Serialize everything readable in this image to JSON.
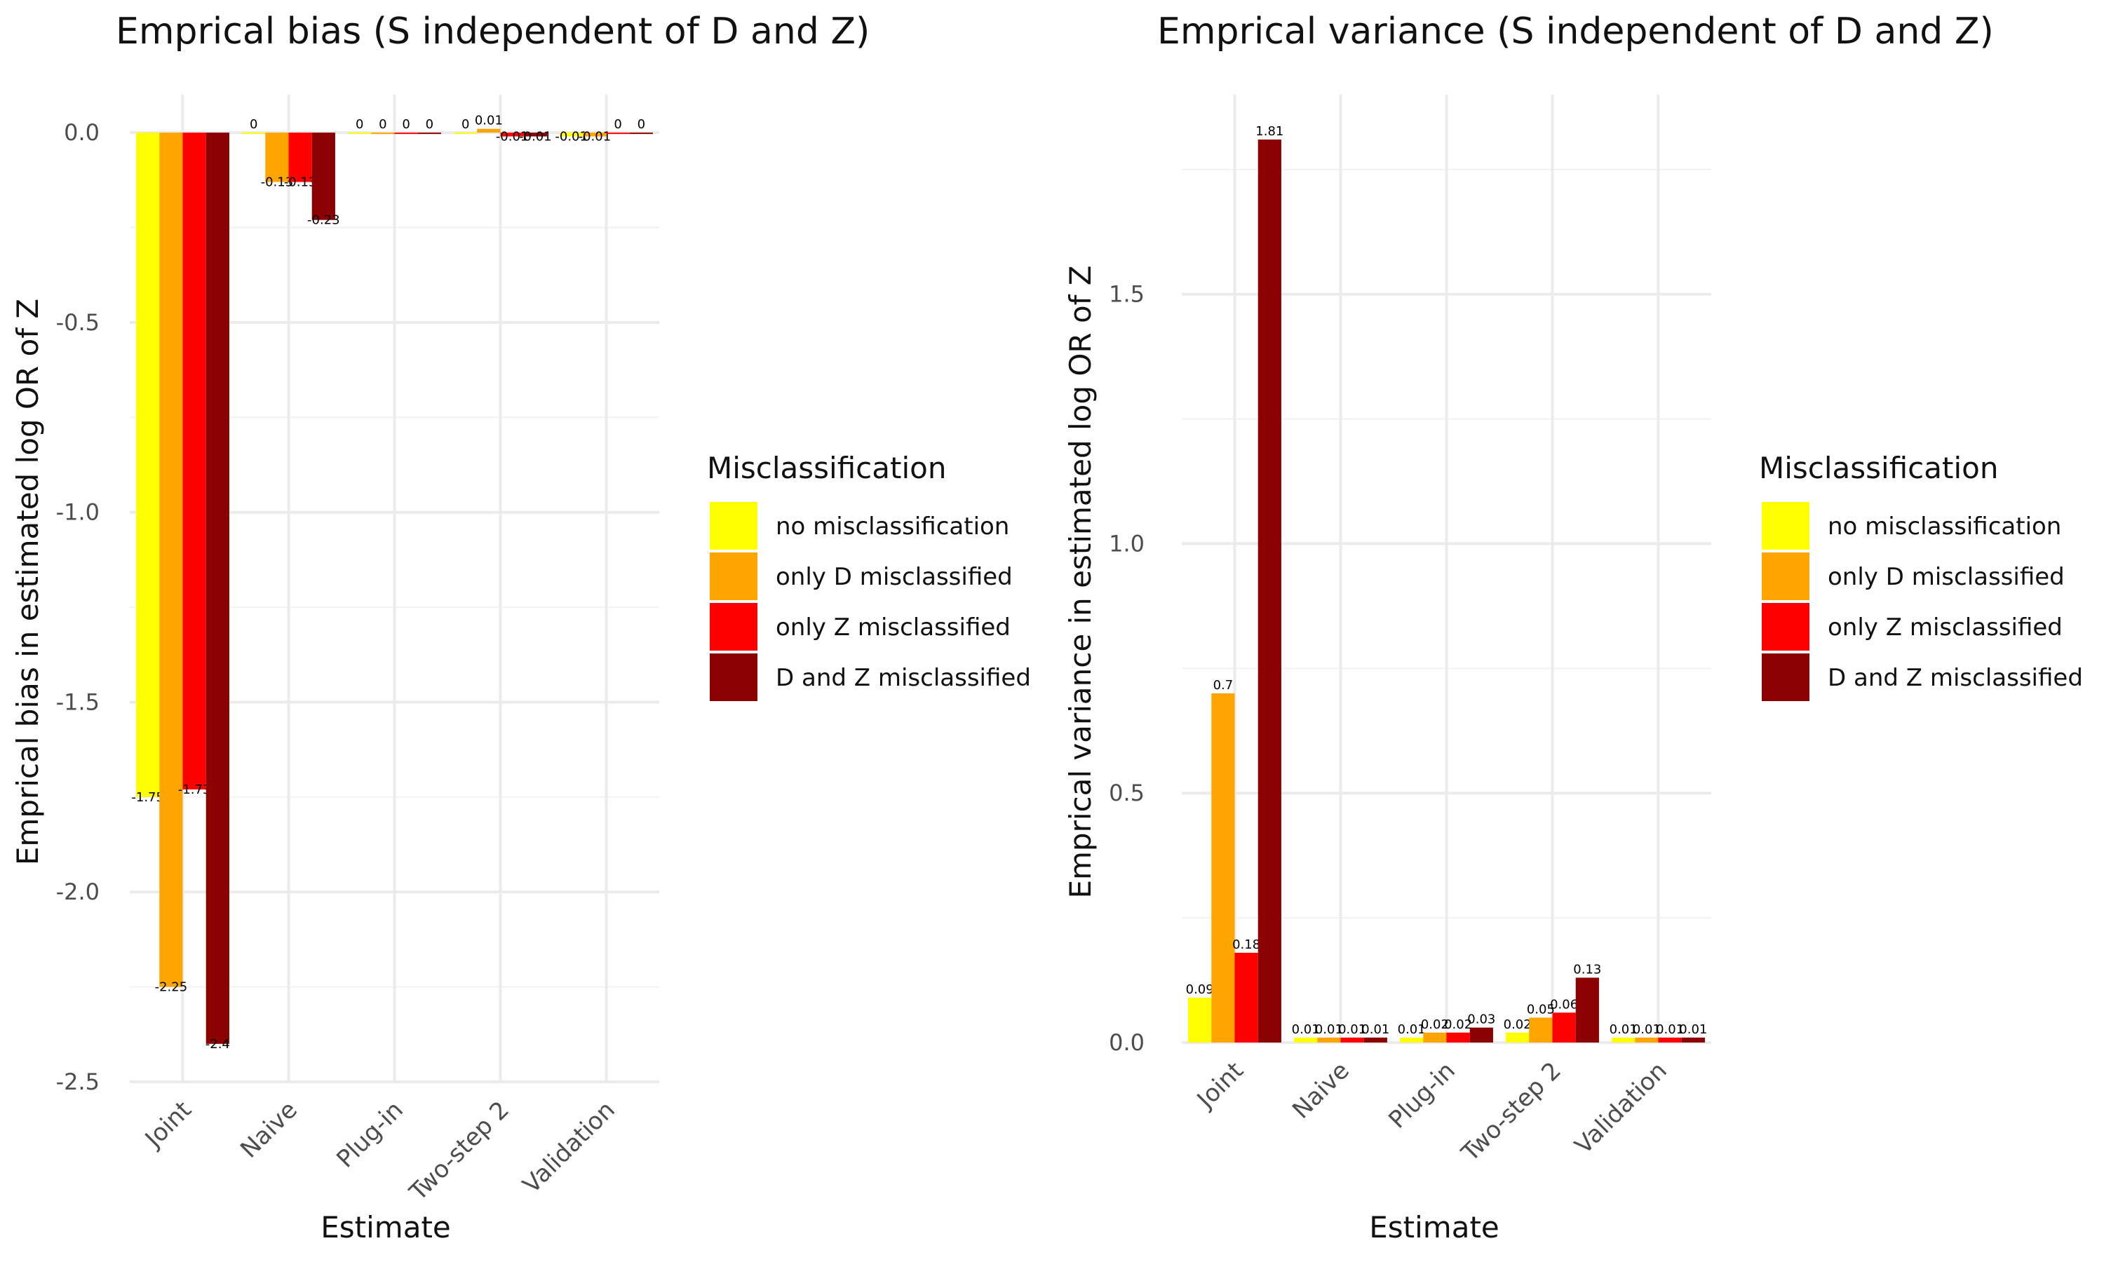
{
  "chart_data": [
    {
      "type": "bar",
      "title": "Emprical bias (S independent of D and Z)",
      "xlabel": "Estimate",
      "ylabel": "Emprical bias in estimated log OR of Z",
      "ylim": [
        -2.5,
        0.1
      ],
      "yticks": [
        -2.5,
        -2.0,
        -1.5,
        -1.0,
        -0.5,
        0.0
      ],
      "ytick_labels": [
        "-2.5",
        "-2.0",
        "-1.5",
        "-1.0",
        "-0.5",
        "0.0"
      ],
      "categories": [
        "Joint",
        "Naive",
        "Plug-in",
        "Two-step 2",
        "Validation"
      ],
      "series": [
        {
          "name": "no misclassification",
          "values": [
            -1.75,
            0,
            0,
            0,
            -0.01
          ],
          "labels": [
            "-1.75",
            "0",
            "0",
            "0",
            "-0.01"
          ]
        },
        {
          "name": "only D misclassified",
          "values": [
            -2.25,
            -0.13,
            0,
            0.01,
            -0.01
          ],
          "labels": [
            "-2.25",
            "-0.13",
            "0",
            "0.01",
            "-0.01"
          ]
        },
        {
          "name": "only Z misclassified",
          "values": [
            -1.73,
            -0.13,
            0,
            -0.01,
            0
          ],
          "labels": [
            "-1.73",
            "-0.13",
            "0",
            "-0.01",
            "0"
          ]
        },
        {
          "name": "D and Z misclassified",
          "values": [
            -2.4,
            -0.23,
            0,
            -0.01,
            0
          ],
          "labels": [
            "-2.4",
            "-0.23",
            "0",
            "-0.01",
            "0"
          ]
        }
      ],
      "grid": true,
      "legend": {
        "position": "right",
        "title": "Misclassification"
      }
    },
    {
      "type": "bar",
      "title": "Emprical variance (S independent of D and Z)",
      "xlabel": "Estimate",
      "ylabel": "Emprical variance in estimated log OR of Z",
      "ylim": [
        0.0,
        1.9
      ],
      "yticks": [
        0.0,
        0.5,
        1.0,
        1.5
      ],
      "ytick_labels": [
        "0.0",
        "0.5",
        "1.0",
        "1.5"
      ],
      "categories": [
        "Joint",
        "Naive",
        "Plug-in",
        "Two-step 2",
        "Validation"
      ],
      "series": [
        {
          "name": "no misclassification",
          "values": [
            0.09,
            0.01,
            0.01,
            0.02,
            0.01
          ],
          "labels": [
            "0.09",
            "0.01",
            "0.01",
            "0.02",
            "0.01"
          ]
        },
        {
          "name": "only D misclassified",
          "values": [
            0.7,
            0.01,
            0.02,
            0.05,
            0.01
          ],
          "labels": [
            "0.7",
            "0.01",
            "0.02",
            "0.05",
            "0.01"
          ]
        },
        {
          "name": "only Z misclassified",
          "values": [
            0.18,
            0.01,
            0.02,
            0.06,
            0.01
          ],
          "labels": [
            "0.18",
            "0.01",
            "0.02",
            "0.06",
            "0.01"
          ]
        },
        {
          "name": "D and Z misclassified",
          "values": [
            1.81,
            0.01,
            0.03,
            0.13,
            0.01
          ],
          "labels": [
            "1.81",
            "0.01",
            "0.03",
            "0.13",
            "0.01"
          ]
        }
      ],
      "grid": true,
      "legend": {
        "position": "right",
        "title": "Misclassification"
      }
    }
  ],
  "colors": [
    "#FFFF00",
    "#FFA500",
    "#FF0000",
    "#8B0000"
  ]
}
